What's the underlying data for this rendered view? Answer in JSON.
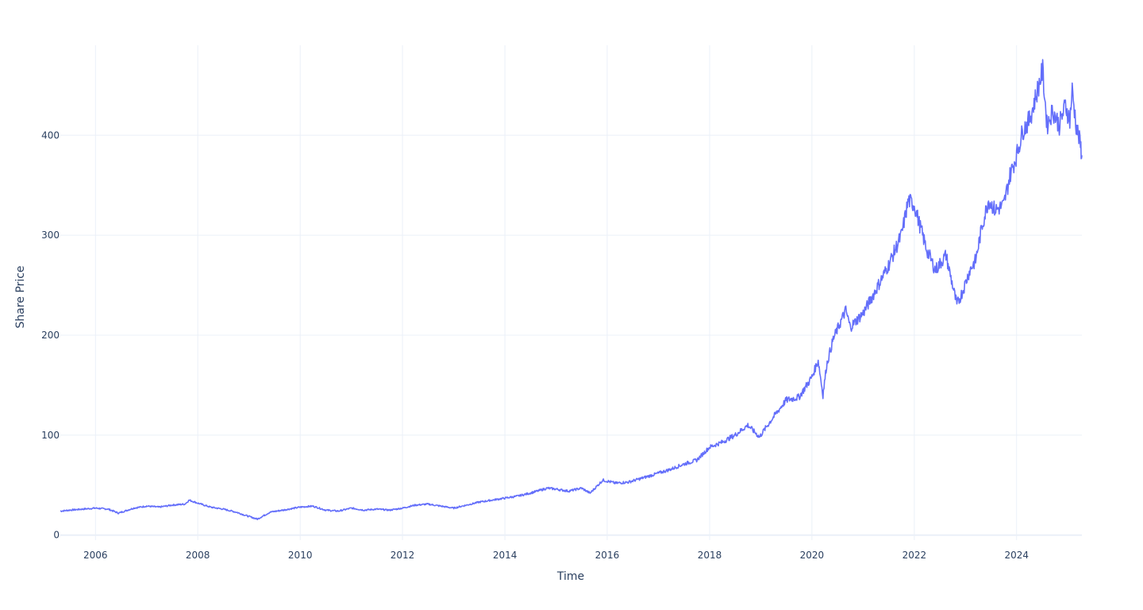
{
  "chart_data": {
    "type": "line",
    "title": "",
    "xlabel": "Time",
    "ylabel": "Share Price",
    "xlim": [
      "2005-04-25",
      "2025-04-11"
    ],
    "ylim": [
      -5,
      490
    ],
    "grid": true,
    "legend": "none",
    "x_ticks": [
      {
        "date": "2006-01-01",
        "label": "2006"
      },
      {
        "date": "2008-01-01",
        "label": "2008"
      },
      {
        "date": "2010-01-01",
        "label": "2010"
      },
      {
        "date": "2012-01-01",
        "label": "2012"
      },
      {
        "date": "2014-01-01",
        "label": "2014"
      },
      {
        "date": "2016-01-01",
        "label": "2016"
      },
      {
        "date": "2018-01-01",
        "label": "2018"
      },
      {
        "date": "2020-01-01",
        "label": "2020"
      },
      {
        "date": "2022-01-01",
        "label": "2022"
      },
      {
        "date": "2024-01-01",
        "label": "2024"
      }
    ],
    "y_ticks": [
      {
        "value": 0,
        "label": "0"
      },
      {
        "value": 100,
        "label": "100"
      },
      {
        "value": 200,
        "label": "200"
      },
      {
        "value": 300,
        "label": "300"
      },
      {
        "value": 400,
        "label": "400"
      }
    ],
    "series": [
      {
        "color": "#636efa",
        "x": [
          "2005-04-25",
          "2005-07-01",
          "2005-10-01",
          "2006-01-01",
          "2006-04-01",
          "2006-06-15",
          "2006-10-01",
          "2007-01-01",
          "2007-04-01",
          "2007-07-01",
          "2007-10-01",
          "2007-11-01",
          "2008-01-01",
          "2008-04-01",
          "2008-07-01",
          "2008-10-01",
          "2008-12-01",
          "2009-01-15",
          "2009-03-01",
          "2009-06-01",
          "2009-09-01",
          "2010-01-01",
          "2010-04-01",
          "2010-07-01",
          "2010-10-01",
          "2011-01-01",
          "2011-04-01",
          "2011-07-01",
          "2011-10-01",
          "2012-01-01",
          "2012-04-01",
          "2012-07-01",
          "2012-10-01",
          "2013-01-01",
          "2013-04-01",
          "2013-07-01",
          "2013-10-01",
          "2014-01-01",
          "2014-04-01",
          "2014-07-01",
          "2014-11-01",
          "2015-01-01",
          "2015-04-01",
          "2015-07-01",
          "2015-09-01",
          "2015-12-01",
          "2016-03-01",
          "2016-06-01",
          "2016-10-01",
          "2017-01-01",
          "2017-04-01",
          "2017-07-01",
          "2017-10-01",
          "2018-01-01",
          "2018-04-01",
          "2018-07-01",
          "2018-10-01",
          "2018-12-24",
          "2019-01-15",
          "2019-04-01",
          "2019-07-01",
          "2019-10-01",
          "2020-01-01",
          "2020-02-15",
          "2020-03-20",
          "2020-04-15",
          "2020-06-01",
          "2020-08-30",
          "2020-10-01",
          "2021-01-01",
          "2021-04-01",
          "2021-07-01",
          "2021-10-01",
          "2021-11-20",
          "2022-01-01",
          "2022-03-01",
          "2022-04-01",
          "2022-06-01",
          "2022-08-15",
          "2022-10-01",
          "2022-11-01",
          "2022-12-15",
          "2023-02-01",
          "2023-03-15",
          "2023-05-01",
          "2023-06-15",
          "2023-08-01",
          "2023-10-01",
          "2023-11-15",
          "2024-01-01",
          "2024-02-15",
          "2024-04-01",
          "2024-05-01",
          "2024-07-05",
          "2024-08-05",
          "2024-09-15",
          "2024-11-01",
          "2024-12-15",
          "2025-01-15",
          "2025-02-01",
          "2025-03-01",
          "2025-04-01",
          "2025-04-11"
        ],
        "values": [
          24,
          25,
          26,
          27,
          26,
          22,
          27,
          29,
          28,
          30,
          31,
          35,
          32,
          28,
          26,
          23,
          20,
          18,
          16,
          23,
          25,
          28,
          29,
          25,
          24,
          27,
          25,
          26,
          25,
          27,
          30,
          31,
          29,
          27,
          30,
          33,
          35,
          37,
          39,
          42,
          47,
          46,
          44,
          47,
          42,
          55,
          52,
          53,
          58,
          62,
          66,
          71,
          75,
          88,
          93,
          100,
          110,
          98,
          103,
          118,
          135,
          138,
          158,
          175,
          140,
          170,
          196,
          225,
          208,
          222,
          245,
          270,
          300,
          335,
          330,
          300,
          285,
          265,
          280,
          250,
          230,
          245,
          265,
          275,
          310,
          335,
          325,
          330,
          360,
          380,
          405,
          415,
          430,
          465,
          410,
          425,
          410,
          430,
          415,
          445,
          410,
          390,
          380
        ]
      }
    ]
  }
}
